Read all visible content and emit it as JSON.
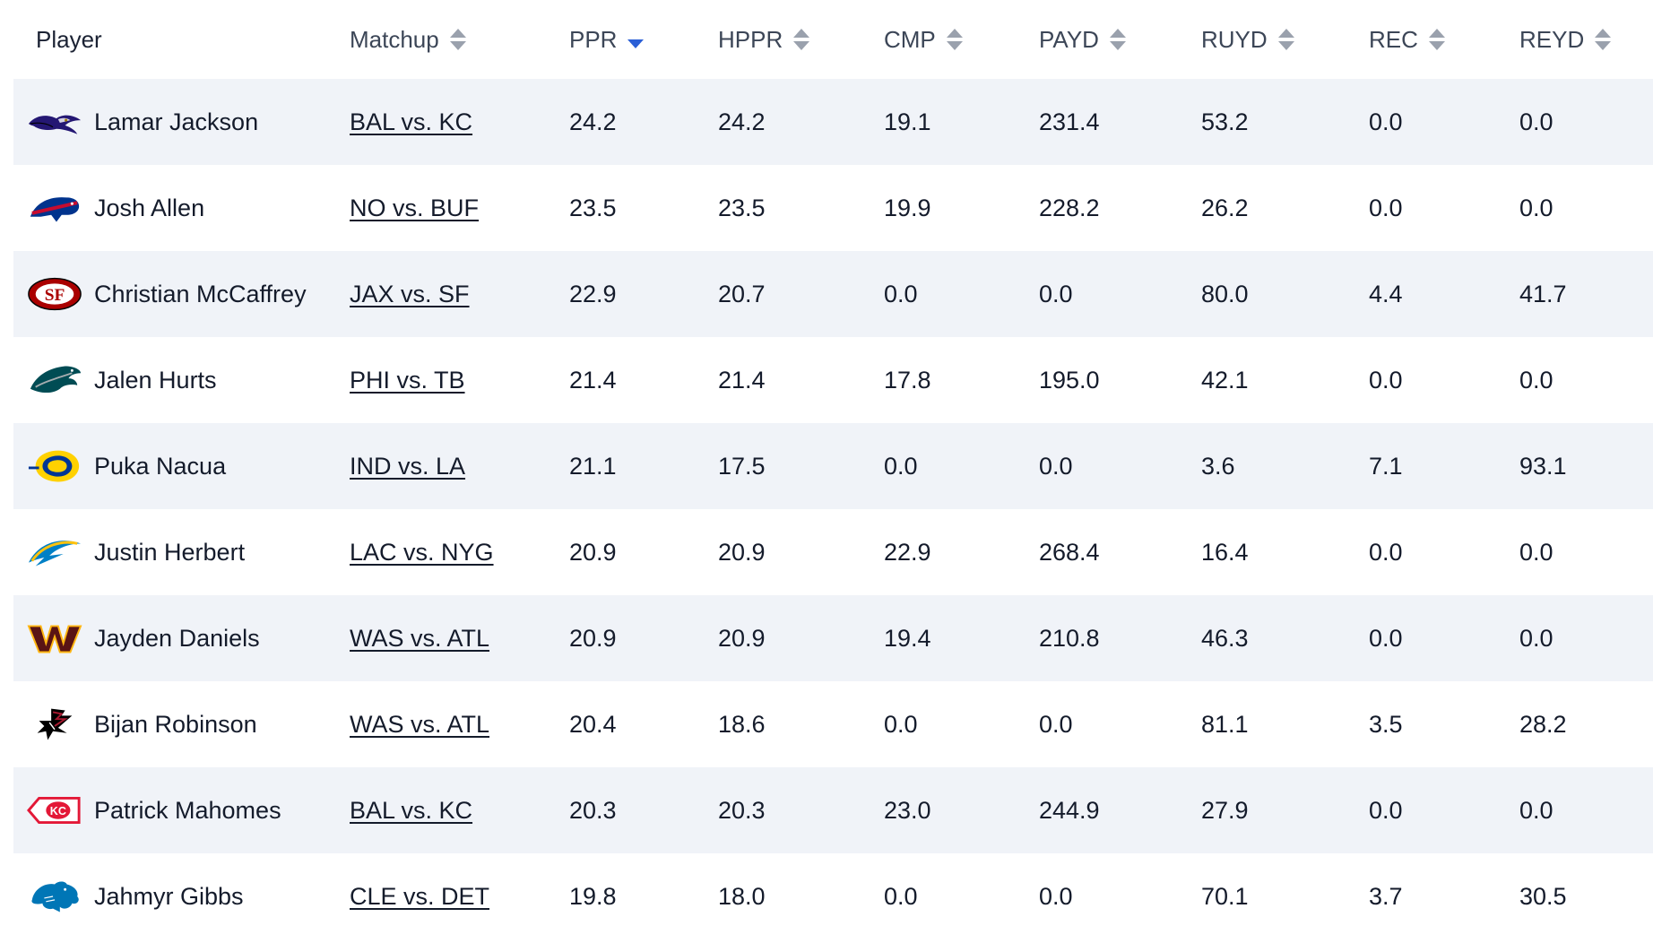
{
  "columns": [
    {
      "label": "Player",
      "sort": "none"
    },
    {
      "label": "Matchup",
      "sort": "sortable"
    },
    {
      "label": "PPR",
      "sort": "desc"
    },
    {
      "label": "HPPR",
      "sort": "sortable"
    },
    {
      "label": "CMP",
      "sort": "sortable"
    },
    {
      "label": "PAYD",
      "sort": "sortable"
    },
    {
      "label": "RUYD",
      "sort": "sortable"
    },
    {
      "label": "REC",
      "sort": "sortable"
    },
    {
      "label": "REYD",
      "sort": "sortable"
    }
  ],
  "rows": [
    {
      "logo": "ravens-logo-icon",
      "player": "Lamar Jackson",
      "matchup": "BAL vs. KC",
      "ppr": "24.2",
      "hppr": "24.2",
      "cmp": "19.1",
      "payd": "231.4",
      "ruyd": "53.2",
      "rec": "0.0",
      "reyd": "0.0"
    },
    {
      "logo": "bills-logo-icon",
      "player": "Josh Allen",
      "matchup": "NO vs. BUF",
      "ppr": "23.5",
      "hppr": "23.5",
      "cmp": "19.9",
      "payd": "228.2",
      "ruyd": "26.2",
      "rec": "0.0",
      "reyd": "0.0"
    },
    {
      "logo": "49ers-logo-icon",
      "player": "Christian McCaffrey",
      "matchup": "JAX vs. SF",
      "ppr": "22.9",
      "hppr": "20.7",
      "cmp": "0.0",
      "payd": "0.0",
      "ruyd": "80.0",
      "rec": "4.4",
      "reyd": "41.7"
    },
    {
      "logo": "eagles-logo-icon",
      "player": "Jalen Hurts",
      "matchup": "PHI vs. TB",
      "ppr": "21.4",
      "hppr": "21.4",
      "cmp": "17.8",
      "payd": "195.0",
      "ruyd": "42.1",
      "rec": "0.0",
      "reyd": "0.0"
    },
    {
      "logo": "rams-logo-icon",
      "player": "Puka Nacua",
      "matchup": "IND vs. LA",
      "ppr": "21.1",
      "hppr": "17.5",
      "cmp": "0.0",
      "payd": "0.0",
      "ruyd": "3.6",
      "rec": "7.1",
      "reyd": "93.1"
    },
    {
      "logo": "chargers-logo-icon",
      "player": "Justin Herbert",
      "matchup": "LAC vs. NYG",
      "ppr": "20.9",
      "hppr": "20.9",
      "cmp": "22.9",
      "payd": "268.4",
      "ruyd": "16.4",
      "rec": "0.0",
      "reyd": "0.0"
    },
    {
      "logo": "commanders-logo-icon",
      "player": "Jayden Daniels",
      "matchup": "WAS vs. ATL",
      "ppr": "20.9",
      "hppr": "20.9",
      "cmp": "19.4",
      "payd": "210.8",
      "ruyd": "46.3",
      "rec": "0.0",
      "reyd": "0.0"
    },
    {
      "logo": "falcons-logo-icon",
      "player": "Bijan Robinson",
      "matchup": "WAS vs. ATL",
      "ppr": "20.4",
      "hppr": "18.6",
      "cmp": "0.0",
      "payd": "0.0",
      "ruyd": "81.1",
      "rec": "3.5",
      "reyd": "28.2"
    },
    {
      "logo": "chiefs-logo-icon",
      "player": "Patrick Mahomes",
      "matchup": "BAL vs. KC",
      "ppr": "20.3",
      "hppr": "20.3",
      "cmp": "23.0",
      "payd": "244.9",
      "ruyd": "27.9",
      "rec": "0.0",
      "reyd": "0.0"
    },
    {
      "logo": "lions-logo-icon",
      "player": "Jahmyr Gibbs",
      "matchup": "CLE vs. DET",
      "ppr": "19.8",
      "hppr": "18.0",
      "cmp": "0.0",
      "payd": "0.0",
      "ruyd": "70.1",
      "rec": "3.7",
      "reyd": "30.5"
    }
  ],
  "colors": {
    "row_alt": "#f0f3f8",
    "sort_active": "#2a5fd6",
    "sort_inactive": "#9aa1ad"
  }
}
